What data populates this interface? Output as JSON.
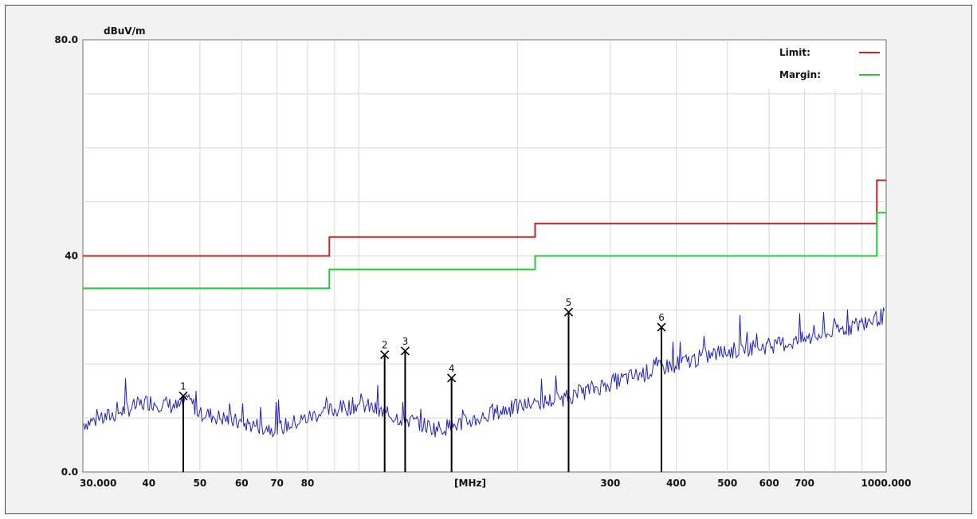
{
  "chart_data": {
    "type": "line",
    "ylabel_unit": "dBuV/m",
    "xlabel": "[MHz]",
    "x_scale": "log",
    "xlim": [
      30,
      1000
    ],
    "ylim": [
      0,
      80
    ],
    "ytick_labels": [
      {
        "value": 80,
        "label": "80.0"
      },
      {
        "value": 40,
        "label": "40"
      },
      {
        "value": 0,
        "label": "0.0"
      }
    ],
    "xtick_labels": [
      {
        "value": 30,
        "label": "30.000"
      },
      {
        "value": 40,
        "label": "40"
      },
      {
        "value": 50,
        "label": "50"
      },
      {
        "value": 60,
        "label": "60"
      },
      {
        "value": 70,
        "label": "70"
      },
      {
        "value": 80,
        "label": "80"
      },
      {
        "value": 300,
        "label": "300"
      },
      {
        "value": 400,
        "label": "400"
      },
      {
        "value": 500,
        "label": "500"
      },
      {
        "value": 600,
        "label": "600"
      },
      {
        "value": 700,
        "label": "700"
      },
      {
        "value": 1000,
        "label": "1000.000"
      }
    ],
    "grid": true,
    "legend_position": "top-right",
    "series": [
      {
        "name": "Limit:",
        "color": "#cc2222",
        "points": [
          [
            30,
            40
          ],
          [
            88,
            40
          ],
          [
            88,
            43.5
          ],
          [
            216,
            43.5
          ],
          [
            216,
            46
          ],
          [
            960,
            46
          ],
          [
            960,
            54
          ],
          [
            1000,
            54
          ]
        ]
      },
      {
        "name": "Margin:",
        "color": "#22cc33",
        "points": [
          [
            30,
            34
          ],
          [
            88,
            34
          ],
          [
            88,
            37.5
          ],
          [
            216,
            37.5
          ],
          [
            216,
            40
          ],
          [
            960,
            40
          ],
          [
            960,
            48
          ],
          [
            1000,
            48
          ]
        ]
      },
      {
        "color": "#2222bb",
        "points": [
          [
            30,
            9
          ],
          [
            33,
            10
          ],
          [
            36,
            11.5
          ],
          [
            40,
            13
          ],
          [
            43,
            12.5
          ],
          [
            45.5,
            12
          ],
          [
            48,
            13
          ],
          [
            50,
            11
          ],
          [
            55,
            10
          ],
          [
            60,
            9
          ],
          [
            65,
            8.5
          ],
          [
            70,
            8
          ],
          [
            75,
            9
          ],
          [
            80,
            10
          ],
          [
            85,
            11
          ],
          [
            90,
            11.5
          ],
          [
            95,
            12
          ],
          [
            100,
            12.5
          ],
          [
            105,
            12
          ],
          [
            110,
            11
          ],
          [
            120,
            10
          ],
          [
            130,
            9
          ],
          [
            140,
            8
          ],
          [
            150,
            8.5
          ],
          [
            170,
            10
          ],
          [
            190,
            11.5
          ],
          [
            210,
            12.5
          ],
          [
            240,
            13.5
          ],
          [
            270,
            15
          ],
          [
            300,
            16.5
          ],
          [
            340,
            18
          ],
          [
            380,
            19.5
          ],
          [
            420,
            20.5
          ],
          [
            480,
            22
          ],
          [
            550,
            23
          ],
          [
            620,
            23.5
          ],
          [
            700,
            24.5
          ],
          [
            800,
            26
          ],
          [
            900,
            27.5
          ],
          [
            1000,
            29
          ]
        ]
      }
    ],
    "markers": [
      {
        "label": "1",
        "freq": 46.5,
        "level": 14.1
      },
      {
        "label": "2",
        "freq": 112.0,
        "level": 21.7
      },
      {
        "label": "3",
        "freq": 122.5,
        "level": 22.4
      },
      {
        "label": "4",
        "freq": 150.0,
        "level": 17.4
      },
      {
        "label": "5",
        "freq": 250.0,
        "level": 29.6
      },
      {
        "label": "6",
        "freq": 375.0,
        "level": 26.8
      }
    ]
  }
}
